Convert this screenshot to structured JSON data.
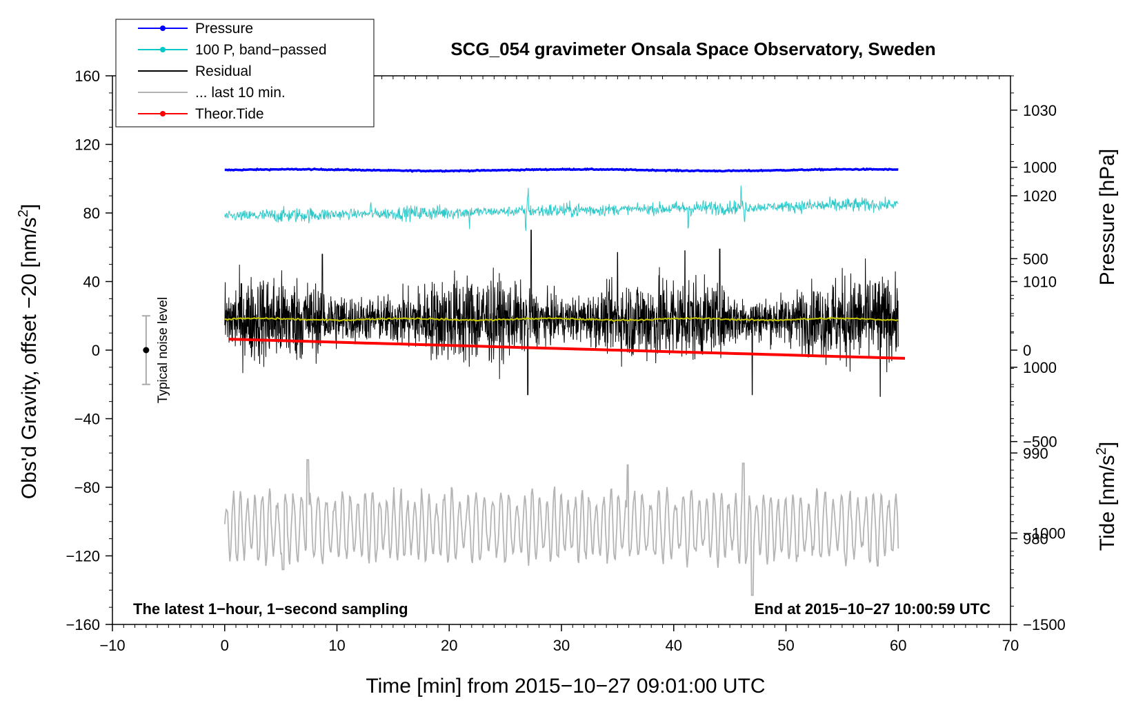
{
  "chart_data": {
    "type": "line",
    "title": "SCG_054 gravimeter Onsala Space Observatory, Sweden",
    "xlabel": "Time [min] from 2015−10−27 09:01:00 UTC",
    "ylabel_left_main": "Obs'd Gravity, offset −20 [nm/s",
    "ylabel_left_sup": "2",
    "ylabel_left_end": "]",
    "ylabel_right_pressure": "Pressure [hPa]",
    "ylabel_right_tide_main": "Tide [nm/s",
    "ylabel_right_tide_sup": "2",
    "ylabel_right_tide_end": "]",
    "xlim": [
      -10,
      70
    ],
    "ylim": [
      -160,
      160
    ],
    "pressure_axis_range": [
      970,
      1034
    ],
    "tide_axis_range": [
      -1500,
      1500
    ],
    "x_ticks": [
      {
        "value": -10,
        "label": "−10"
      },
      {
        "value": 0,
        "label": "0"
      },
      {
        "value": 10,
        "label": "10"
      },
      {
        "value": 20,
        "label": "20"
      },
      {
        "value": 30,
        "label": "30"
      },
      {
        "value": 40,
        "label": "40"
      },
      {
        "value": 50,
        "label": "50"
      },
      {
        "value": 60,
        "label": "60"
      },
      {
        "value": 70,
        "label": "70"
      }
    ],
    "y_ticks": [
      {
        "value": 160,
        "label": "160"
      },
      {
        "value": 120,
        "label": "120"
      },
      {
        "value": 80,
        "label": "80"
      },
      {
        "value": 40,
        "label": "40"
      },
      {
        "value": 0,
        "label": "0"
      },
      {
        "value": -40,
        "label": "−40"
      },
      {
        "value": -80,
        "label": "−80"
      },
      {
        "value": -120,
        "label": "−120"
      },
      {
        "value": -160,
        "label": "−160"
      }
    ],
    "pressure_ticks": [
      {
        "value": 1030,
        "label": "1030"
      },
      {
        "value": 1020,
        "label": "1020"
      },
      {
        "value": 1010,
        "label": "1010"
      },
      {
        "value": 1000,
        "label": "1000"
      },
      {
        "value": 990,
        "label": "990"
      },
      {
        "value": 980,
        "label": "980"
      }
    ],
    "tide_ticks": [
      {
        "value": 1000,
        "label": "1000"
      },
      {
        "value": 500,
        "label": "500"
      },
      {
        "value": 0,
        "label": "0"
      },
      {
        "value": -500,
        "label": "−500"
      },
      {
        "value": -1000,
        "label": "−1000"
      },
      {
        "value": -1500,
        "label": "−1500"
      }
    ],
    "legend": [
      {
        "label": "Pressure",
        "color": "#0000ff",
        "marker": true
      },
      {
        "label": "100 P, band−passed",
        "color": "#00c8c8",
        "marker": true
      },
      {
        "label": "Residual",
        "color": "#000000",
        "marker": false
      },
      {
        "label": "... last 10 min.",
        "color": "#b4b4b4",
        "marker": false
      },
      {
        "label": "Theor.Tide",
        "color": "#ff0000",
        "marker": true
      }
    ],
    "series": [
      {
        "name": "Pressure",
        "axis": "pressure",
        "color": "#0000ff",
        "x_range": [
          0,
          60
        ],
        "start": 1023.0,
        "end": 1023.0,
        "noise": 0.15
      },
      {
        "name": "100 P, band-passed",
        "axis": "left",
        "color": "#2ec8c8",
        "x_range": [
          0,
          60
        ],
        "start": 78,
        "end": 85,
        "noise": 2.0,
        "spikes": [
          [
            26.8,
            -12
          ],
          [
            27.0,
            10
          ],
          [
            41.3,
            -10
          ],
          [
            46.0,
            10
          ],
          [
            46.3,
            -9
          ],
          [
            13.0,
            5
          ],
          [
            21.8,
            -7
          ]
        ]
      },
      {
        "name": "Residual",
        "axis": "left",
        "color": "#000000",
        "x_range": [
          0,
          60
        ],
        "center": 18,
        "amplitude": 19,
        "spikes": [
          [
            27.3,
            52
          ],
          [
            27.0,
            -44
          ],
          [
            47.0,
            -44
          ],
          [
            41.0,
            40
          ],
          [
            44.1,
            41
          ],
          [
            58.4,
            -45
          ],
          [
            8.7,
            38
          ],
          [
            35.0,
            39
          ]
        ]
      },
      {
        "name": "Residual running mean",
        "axis": "left",
        "color": "#c8c800",
        "x_range": [
          0,
          60
        ],
        "center": 18,
        "noise": 0.8
      },
      {
        "name": "Theor.Tide",
        "axis": "tide",
        "color": "#ff0000",
        "x_range": [
          0.4,
          60.6
        ],
        "start": 60,
        "end": -45
      },
      {
        "name": "... last 10 min.",
        "axis": "left",
        "color": "#b4b4b4",
        "x_range": [
          0,
          60
        ],
        "center": -103,
        "amplitude": 18,
        "extremes": [
          [
            7.4,
            -64
          ],
          [
            35.9,
            -67
          ],
          [
            46.2,
            -66
          ],
          [
            47.0,
            -143
          ],
          [
            5.2,
            -128
          ]
        ]
      }
    ],
    "noise_bar": {
      "label": "Typical noise level",
      "x": -7,
      "center": 0,
      "low": -20,
      "high": 20
    },
    "annotations": {
      "left": "The latest 1−hour, 1−second sampling",
      "right": "End at 2015−10−27 10:00:59 UTC"
    }
  }
}
